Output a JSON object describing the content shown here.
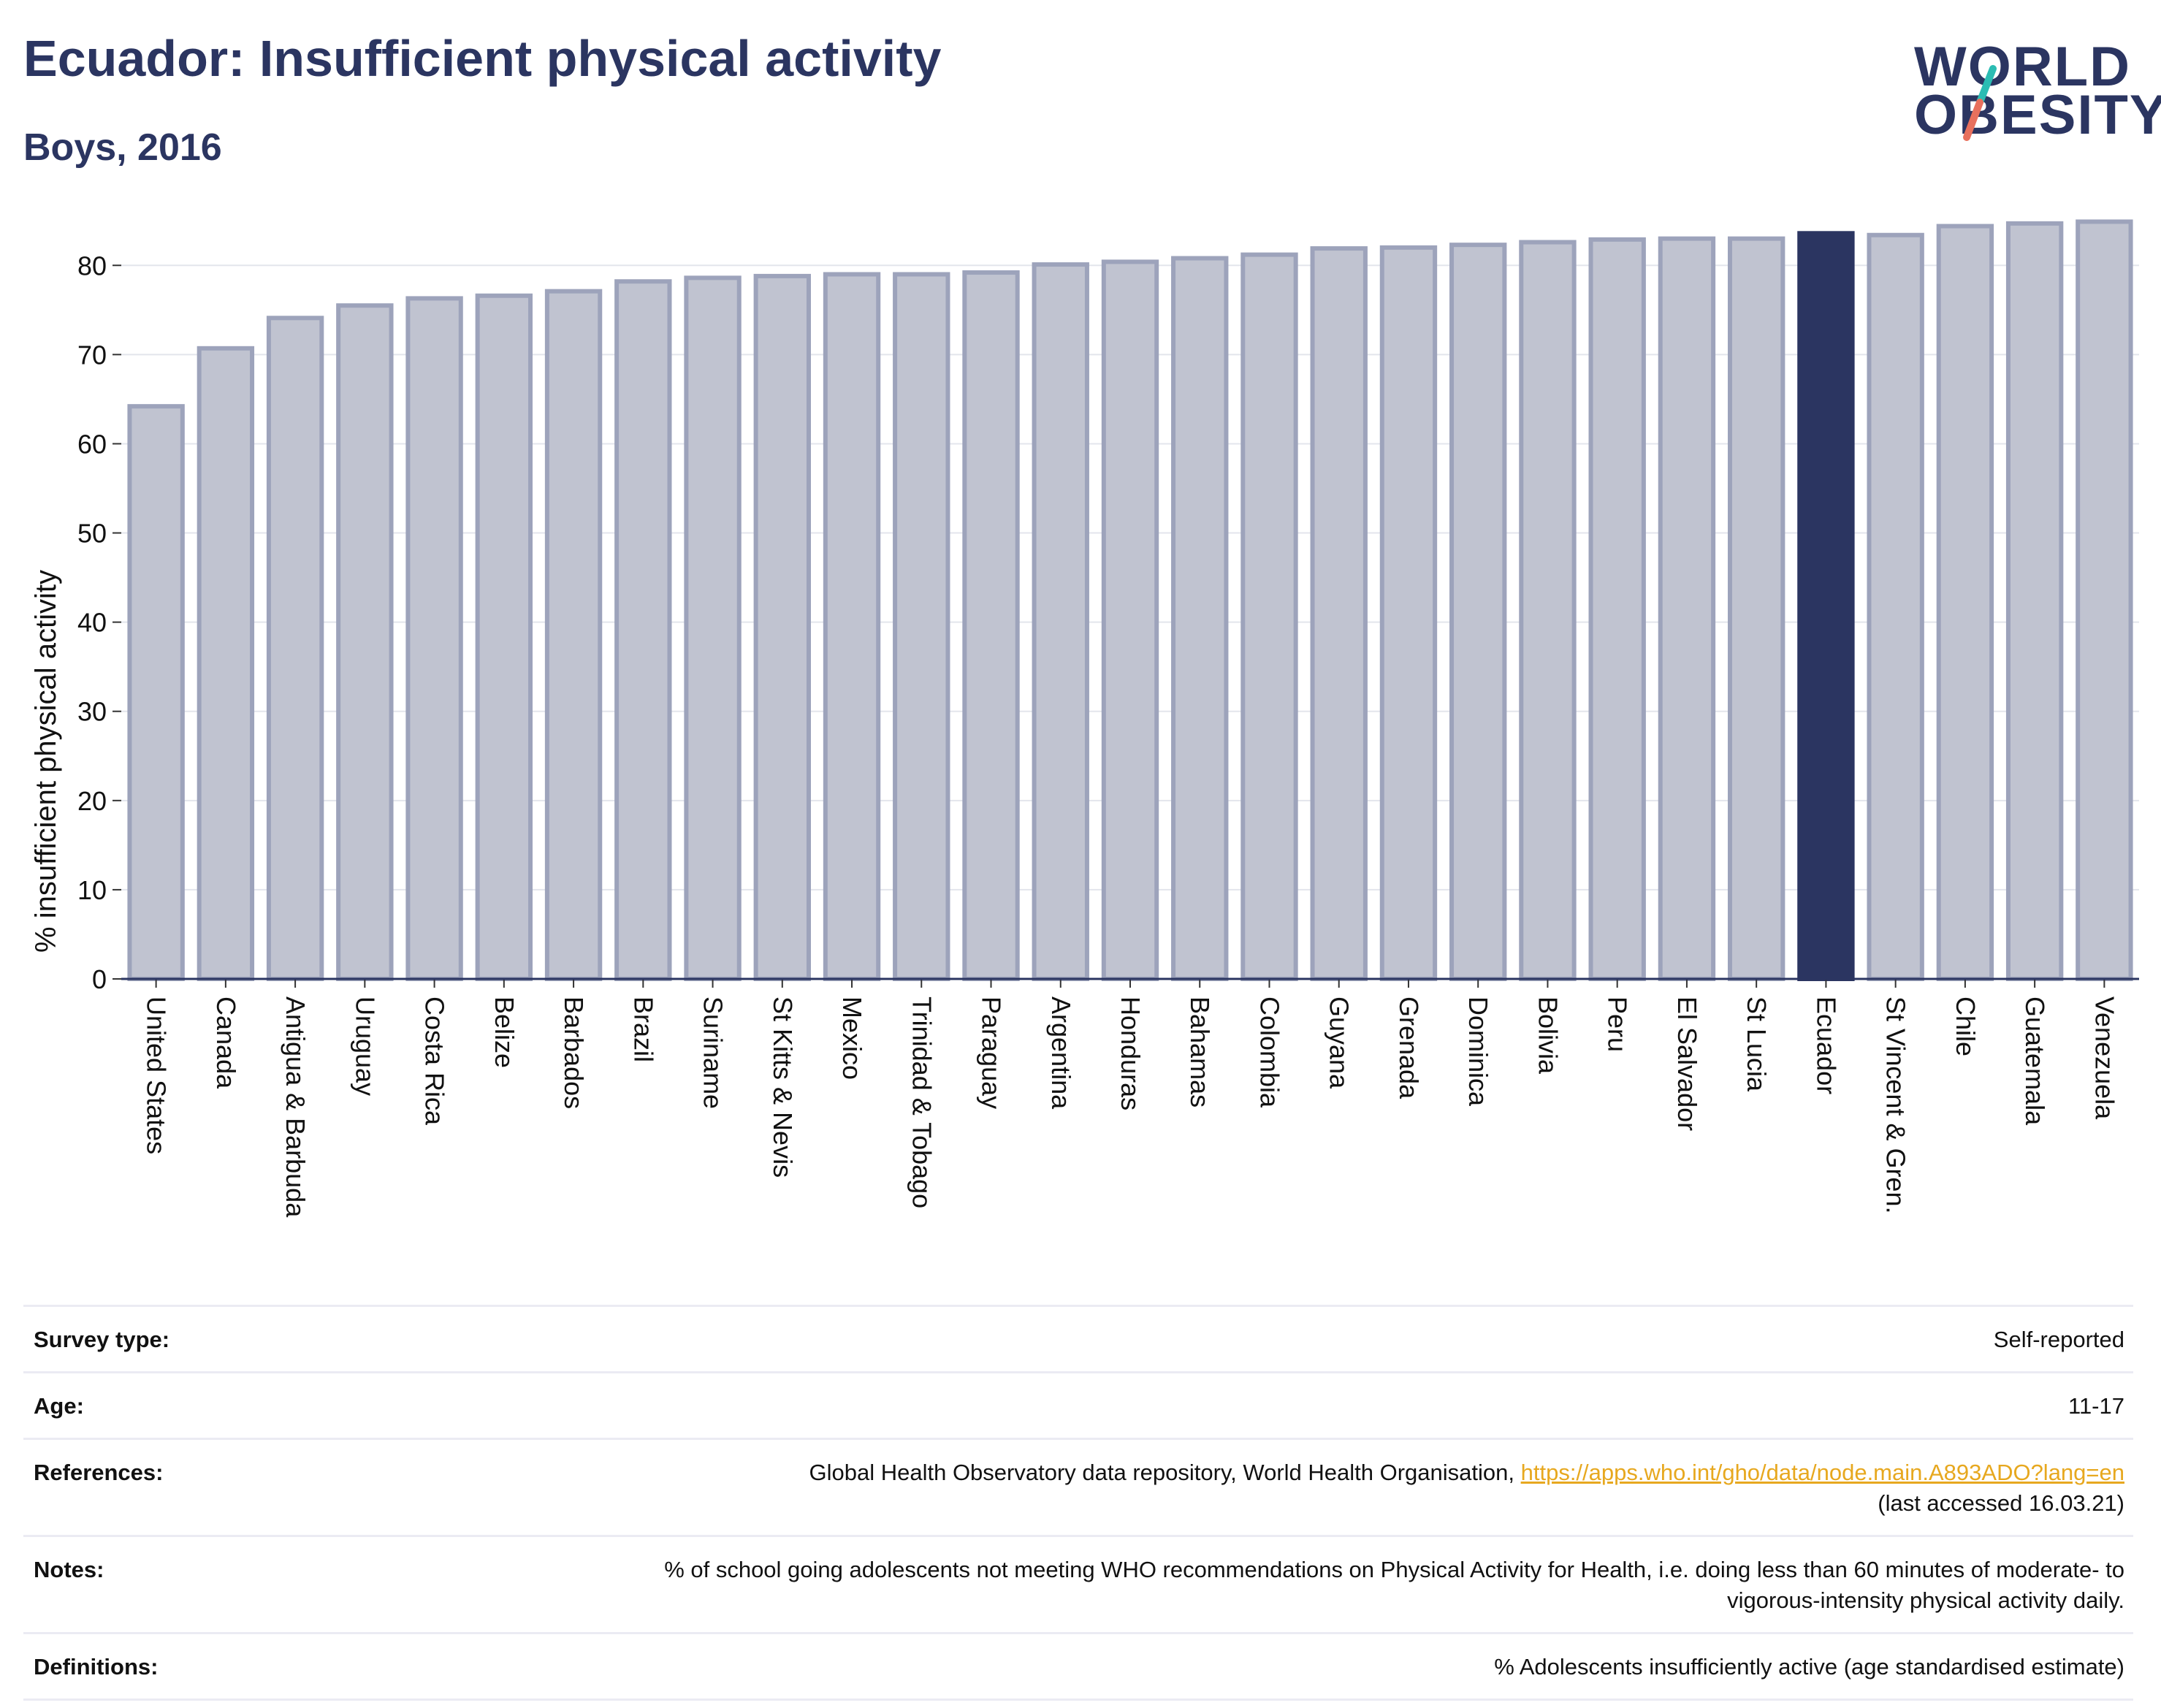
{
  "header": {
    "title": "Ecuador: Insufficient physical activity",
    "subtitle": "Boys, 2016"
  },
  "logo": {
    "line1": "WORLD",
    "line2": "OBESITY",
    "colors": {
      "text": "#2b3561",
      "slash_top": "#2bbcb3",
      "slash_bottom": "#e8705d"
    }
  },
  "chart_data": {
    "type": "bar",
    "title": "",
    "xlabel": "",
    "ylabel": "% insufficient physical activity",
    "ylim": [
      0,
      86
    ],
    "yticks": [
      0,
      10,
      20,
      30,
      40,
      50,
      60,
      70,
      80
    ],
    "grid": true,
    "highlight": "Ecuador",
    "colors": {
      "bar": "#c0c3d0",
      "bar_edge": "#9da3bb",
      "highlight": "#2b3561"
    },
    "categories": [
      "United States",
      "Canada",
      "Antigua & Barbuda",
      "Uruguay",
      "Costa Rica",
      "Belize",
      "Barbados",
      "Brazil",
      "Suriname",
      "St Kitts & Nevis",
      "Mexico",
      "Trinidad & Tobago",
      "Paraguay",
      "Argentina",
      "Honduras",
      "Bahamas",
      "Colombia",
      "Guyana",
      "Grenada",
      "Dominica",
      "Bolivia",
      "Peru",
      "El Salvador",
      "St Lucia",
      "Ecuador",
      "St Vincent & Gren.",
      "Chile",
      "Guatemala",
      "Venezuela"
    ],
    "values": [
      64.2,
      70.7,
      74.1,
      75.5,
      76.3,
      76.6,
      77.1,
      78.2,
      78.6,
      78.8,
      79.0,
      79.0,
      79.2,
      80.1,
      80.4,
      80.8,
      81.2,
      81.9,
      82.0,
      82.3,
      82.6,
      82.9,
      83.0,
      83.0,
      83.6,
      83.4,
      84.4,
      84.7,
      84.9
    ]
  },
  "info_table": [
    {
      "label": "Survey type:",
      "value": "Self-reported"
    },
    {
      "label": "Age:",
      "value": "11-17"
    },
    {
      "label": "References:",
      "value": "Global Health Observatory data repository, World Health Organisation,",
      "link": "https://apps.who.int/gho/data/node.main.A893ADO?lang=en",
      "note": "(last accessed 16.03.21)"
    },
    {
      "label": "Notes:",
      "value": "% of school going adolescents not meeting WHO recommendations on Physical Activity for Health, i.e. doing less than 60 minutes of moderate- to vigorous-intensity physical activity daily."
    },
    {
      "label": "Definitions:",
      "value": "% Adolescents insufficiently active (age standardised estimate)"
    }
  ]
}
